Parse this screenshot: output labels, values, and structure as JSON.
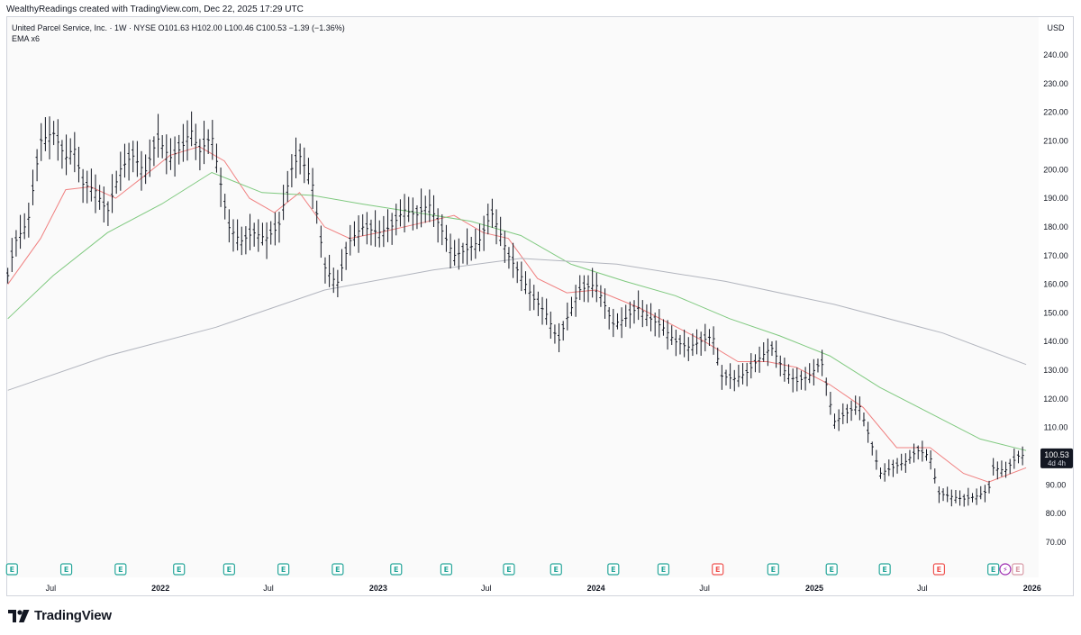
{
  "caption": "WealthyReadings created with TradingView.com, Dec 22, 2025 17:29 UTC",
  "legend": {
    "symbol_line": "United Parcel Service, Inc. · 1W · NYSE  O101.63  H102.00  L100.46  C100.53  −1.39 (−1.36%)",
    "indicator_line": "EMA x6"
  },
  "branding": {
    "name": "TradingView",
    "icon": "tradingview-logo-icon"
  },
  "colors": {
    "up_down_bars": "#131722",
    "ema_fast": "#f08080",
    "ema_mid": "#7fc97f",
    "ema_slow": "#b2b5be",
    "earnings_badge": "#26a69a",
    "earnings_badge_red": "#ef5350",
    "dividend_badge": "#9c27b0",
    "price_label_bg": "#131722"
  },
  "chart_data": {
    "type": "ohlc",
    "currency_label": "USD",
    "ylim": [
      68,
      246
    ],
    "y_ticks": [
      240,
      230,
      220,
      210,
      200,
      190,
      180,
      170,
      160,
      150,
      140,
      130,
      120,
      110,
      100,
      90,
      80,
      70
    ],
    "y_tick_labels": [
      "240.00",
      "230.00",
      "220.00",
      "210.00",
      "200.00",
      "190.00",
      "180.00",
      "170.00",
      "160.00",
      "150.00",
      "140.00",
      "130.00",
      "120.00",
      "110.00",
      "100.00",
      "90.00",
      "80.00",
      "70.00"
    ],
    "x_range": [
      "2021-04-19",
      "2026-01-12"
    ],
    "x_ticks": [
      {
        "label": "Jul",
        "date": "2021-07-01"
      },
      {
        "label": "2022",
        "date": "2022-01-01",
        "bold": true
      },
      {
        "label": "Jul",
        "date": "2022-07-01"
      },
      {
        "label": "2023",
        "date": "2023-01-01",
        "bold": true
      },
      {
        "label": "Jul",
        "date": "2023-07-01"
      },
      {
        "label": "2024",
        "date": "2024-01-01",
        "bold": true
      },
      {
        "label": "Jul",
        "date": "2024-07-01"
      },
      {
        "label": "2025",
        "date": "2025-01-01",
        "bold": true
      },
      {
        "label": "Jul",
        "date": "2025-07-01"
      },
      {
        "label": "2026",
        "date": "2026-01-01",
        "bold": true
      }
    ],
    "last_price": {
      "value": 100.53,
      "label": "100.53",
      "countdown": "4d 4h"
    },
    "close_path": [
      [
        "2021-04-20",
        163
      ],
      [
        "2021-05-03",
        175
      ],
      [
        "2021-05-24",
        182
      ],
      [
        "2021-06-14",
        210
      ],
      [
        "2021-07-05",
        213
      ],
      [
        "2021-07-26",
        204
      ],
      [
        "2021-08-09",
        208
      ],
      [
        "2021-08-23",
        195
      ],
      [
        "2021-09-13",
        193
      ],
      [
        "2021-10-04",
        185
      ],
      [
        "2021-10-25",
        200
      ],
      [
        "2021-11-15",
        205
      ],
      [
        "2021-12-06",
        199
      ],
      [
        "2021-12-27",
        211
      ],
      [
        "2022-01-17",
        204
      ],
      [
        "2022-02-07",
        208
      ],
      [
        "2022-02-21",
        214
      ],
      [
        "2022-03-07",
        206
      ],
      [
        "2022-03-28",
        212
      ],
      [
        "2022-04-25",
        180
      ],
      [
        "2022-05-16",
        175
      ],
      [
        "2022-06-06",
        178
      ],
      [
        "2022-06-27",
        176
      ],
      [
        "2022-07-18",
        180
      ],
      [
        "2022-08-08",
        200
      ],
      [
        "2022-08-22",
        205
      ],
      [
        "2022-09-12",
        196
      ],
      [
        "2022-10-03",
        166
      ],
      [
        "2022-10-24",
        160
      ],
      [
        "2022-11-14",
        175
      ],
      [
        "2022-12-05",
        180
      ],
      [
        "2023-01-02",
        178
      ],
      [
        "2023-01-23",
        180
      ],
      [
        "2023-02-13",
        186
      ],
      [
        "2023-03-06",
        184
      ],
      [
        "2023-03-27",
        188
      ],
      [
        "2023-04-17",
        179
      ],
      [
        "2023-05-08",
        170
      ],
      [
        "2023-05-29",
        172
      ],
      [
        "2023-06-19",
        175
      ],
      [
        "2023-07-10",
        185
      ],
      [
        "2023-07-24",
        178
      ],
      [
        "2023-08-07",
        170
      ],
      [
        "2023-08-28",
        163
      ],
      [
        "2023-09-18",
        155
      ],
      [
        "2023-10-09",
        150
      ],
      [
        "2023-10-30",
        140
      ],
      [
        "2023-11-13",
        148
      ],
      [
        "2023-12-04",
        158
      ],
      [
        "2024-01-01",
        160
      ],
      [
        "2024-01-29",
        146
      ],
      [
        "2024-02-19",
        148
      ],
      [
        "2024-03-11",
        152
      ],
      [
        "2024-04-01",
        148
      ],
      [
        "2024-04-22",
        145
      ],
      [
        "2024-05-13",
        140
      ],
      [
        "2024-06-03",
        138
      ],
      [
        "2024-06-24",
        140
      ],
      [
        "2024-07-15",
        142
      ],
      [
        "2024-07-29",
        128
      ],
      [
        "2024-08-19",
        127
      ],
      [
        "2024-09-09",
        129
      ],
      [
        "2024-09-30",
        134
      ],
      [
        "2024-10-21",
        138
      ],
      [
        "2024-11-11",
        130
      ],
      [
        "2024-12-02",
        126
      ],
      [
        "2024-12-23",
        128
      ],
      [
        "2025-01-13",
        133
      ],
      [
        "2025-02-03",
        112
      ],
      [
        "2025-02-24",
        115
      ],
      [
        "2025-03-17",
        118
      ],
      [
        "2025-04-07",
        104
      ],
      [
        "2025-04-21",
        94
      ],
      [
        "2025-05-12",
        96
      ],
      [
        "2025-06-02",
        98
      ],
      [
        "2025-06-23",
        102
      ],
      [
        "2025-07-14",
        100
      ],
      [
        "2025-07-28",
        87
      ],
      [
        "2025-08-18",
        86
      ],
      [
        "2025-09-08",
        85
      ],
      [
        "2025-09-29",
        86
      ],
      [
        "2025-10-20",
        88
      ],
      [
        "2025-10-27",
        96
      ],
      [
        "2025-11-17",
        95
      ],
      [
        "2025-12-08",
        100
      ],
      [
        "2025-12-22",
        100.53
      ]
    ],
    "series": [
      {
        "name": "EMA",
        "role": "fast",
        "values": [
          [
            "2021-04-20",
            160
          ],
          [
            "2021-06-14",
            176
          ],
          [
            "2021-07-26",
            193
          ],
          [
            "2021-09-06",
            194
          ],
          [
            "2021-10-18",
            190
          ],
          [
            "2021-12-06",
            198
          ],
          [
            "2022-01-17",
            205
          ],
          [
            "2022-03-07",
            208
          ],
          [
            "2022-04-18",
            203
          ],
          [
            "2022-05-30",
            190
          ],
          [
            "2022-07-11",
            185
          ],
          [
            "2022-08-22",
            192
          ],
          [
            "2022-10-03",
            180
          ],
          [
            "2022-11-14",
            176
          ],
          [
            "2023-01-02",
            178
          ],
          [
            "2023-03-06",
            181
          ],
          [
            "2023-05-08",
            184
          ],
          [
            "2023-06-26",
            178
          ],
          [
            "2023-08-07",
            176
          ],
          [
            "2023-09-25",
            162
          ],
          [
            "2023-11-13",
            157
          ],
          [
            "2024-01-01",
            158
          ],
          [
            "2024-03-11",
            152
          ],
          [
            "2024-05-06",
            146
          ],
          [
            "2024-07-01",
            140
          ],
          [
            "2024-08-26",
            133
          ],
          [
            "2024-10-14",
            133
          ],
          [
            "2024-12-02",
            131
          ],
          [
            "2025-01-27",
            125
          ],
          [
            "2025-03-24",
            117
          ],
          [
            "2025-05-19",
            103
          ],
          [
            "2025-07-14",
            103
          ],
          [
            "2025-09-08",
            94
          ],
          [
            "2025-10-20",
            91
          ],
          [
            "2025-12-22",
            96
          ]
        ]
      },
      {
        "name": "EMA",
        "role": "mid",
        "values": [
          [
            "2021-04-20",
            148
          ],
          [
            "2021-07-05",
            163
          ],
          [
            "2021-10-04",
            178
          ],
          [
            "2022-01-03",
            188
          ],
          [
            "2022-03-28",
            199
          ],
          [
            "2022-06-20",
            192
          ],
          [
            "2022-09-12",
            191
          ],
          [
            "2022-12-05",
            188
          ],
          [
            "2023-03-06",
            185
          ],
          [
            "2023-06-05",
            182
          ],
          [
            "2023-08-28",
            177
          ],
          [
            "2023-11-20",
            167
          ],
          [
            "2024-02-19",
            161
          ],
          [
            "2024-05-13",
            156
          ],
          [
            "2024-08-12",
            148
          ],
          [
            "2024-11-04",
            142
          ],
          [
            "2025-01-27",
            135
          ],
          [
            "2025-04-21",
            124
          ],
          [
            "2025-07-14",
            115
          ],
          [
            "2025-10-06",
            106
          ],
          [
            "2025-12-22",
            102
          ]
        ]
      },
      {
        "name": "EMA",
        "role": "slow",
        "values": [
          [
            "2021-04-20",
            123
          ],
          [
            "2021-10-04",
            135
          ],
          [
            "2022-04-04",
            145
          ],
          [
            "2022-10-03",
            158
          ],
          [
            "2023-04-03",
            165
          ],
          [
            "2023-08-28",
            169
          ],
          [
            "2024-02-05",
            167
          ],
          [
            "2024-08-05",
            161
          ],
          [
            "2025-02-03",
            153
          ],
          [
            "2025-08-04",
            143
          ],
          [
            "2025-12-22",
            132
          ]
        ]
      }
    ],
    "events": [
      {
        "type": "earnings",
        "date": "2021-04-27",
        "label": "E",
        "color": "green"
      },
      {
        "type": "earnings",
        "date": "2021-07-27",
        "label": "E",
        "color": "green"
      },
      {
        "type": "earnings",
        "date": "2021-10-26",
        "label": "E",
        "color": "green"
      },
      {
        "type": "earnings",
        "date": "2022-02-01",
        "label": "E",
        "color": "green"
      },
      {
        "type": "earnings",
        "date": "2022-04-26",
        "label": "E",
        "color": "green"
      },
      {
        "type": "earnings",
        "date": "2022-07-26",
        "label": "E",
        "color": "green"
      },
      {
        "type": "earnings",
        "date": "2022-10-25",
        "label": "E",
        "color": "green"
      },
      {
        "type": "earnings",
        "date": "2023-01-31",
        "label": "E",
        "color": "green"
      },
      {
        "type": "earnings",
        "date": "2023-04-25",
        "label": "E",
        "color": "green"
      },
      {
        "type": "earnings",
        "date": "2023-08-08",
        "label": "E",
        "color": "green"
      },
      {
        "type": "earnings",
        "date": "2023-10-26",
        "label": "E",
        "color": "green"
      },
      {
        "type": "earnings",
        "date": "2024-01-30",
        "label": "E",
        "color": "green"
      },
      {
        "type": "earnings",
        "date": "2024-04-23",
        "label": "E",
        "color": "green"
      },
      {
        "type": "earnings",
        "date": "2024-07-23",
        "label": "E",
        "color": "red"
      },
      {
        "type": "earnings",
        "date": "2024-10-24",
        "label": "E",
        "color": "green"
      },
      {
        "type": "earnings",
        "date": "2025-01-30",
        "label": "E",
        "color": "green"
      },
      {
        "type": "earnings",
        "date": "2025-04-29",
        "label": "E",
        "color": "green"
      },
      {
        "type": "earnings",
        "date": "2025-07-29",
        "label": "E",
        "color": "red"
      },
      {
        "type": "earnings",
        "date": "2025-10-28",
        "label": "E",
        "color": "green"
      },
      {
        "type": "dividend",
        "date": "2025-11-17",
        "label": "⚡",
        "color": "purple"
      },
      {
        "type": "earnings",
        "date": "2025-12-08",
        "label": "E",
        "color": "faded"
      }
    ]
  }
}
